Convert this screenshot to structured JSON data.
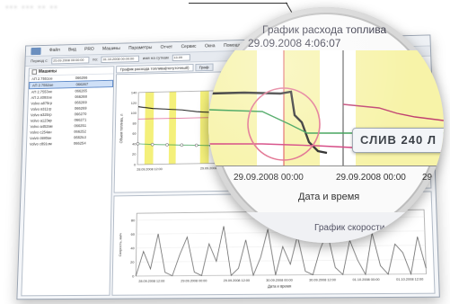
{
  "header": {
    "blurb": "··· ···  ·· ··"
  },
  "app": {
    "menu": [
      "Файл",
      "Вид",
      "PRO",
      "Машины",
      "Параметры",
      "Отчет",
      "Сервис",
      "Окна",
      "Помощь"
    ],
    "toolbar": {
      "period_label": "Период с:",
      "from_value": "25.09.2008 00:00:00",
      "to_label": "по:",
      "to_value": "31.10.2008 00:00:00",
      "extra_label": "имя на суткам",
      "extra_value": "13.09"
    },
    "objects_header": "Машины",
    "objects": [
      {
        "name": "АП 2.7551ое",
        "id": "066266"
      },
      {
        "name": "АП 2.7552ое",
        "id": "066267"
      },
      {
        "name": "АП 2.7553ое",
        "id": "066265"
      },
      {
        "name": "АП 2.4093ое",
        "id": "066268"
      },
      {
        "name": "Volvo а875гр",
        "id": "066269"
      },
      {
        "name": "Volvo в311гр",
        "id": "066269"
      },
      {
        "name": "Volvo в325гр",
        "id": "066270"
      },
      {
        "name": "Volvo а123кр",
        "id": "066271"
      },
      {
        "name": "Volvo а452ам",
        "id": "066251"
      },
      {
        "name": "Volvo с254ан",
        "id": "066252"
      },
      {
        "name": "Volvo с680ан",
        "id": "066253"
      },
      {
        "name": "Volvo с891ом",
        "id": "066254"
      }
    ],
    "selected_index": 1,
    "tabs": [
      "График расхода топлива(потуточный)",
      "Граф"
    ]
  },
  "chart_data": [
    {
      "type": "line",
      "title": "",
      "xlabel": "Дата и время",
      "ylabel": "Объем топлива, л",
      "x_ticks": [
        "28.09.2008 12:00",
        "29.09.2008 00:00",
        "29.09.2008 12:00",
        "30.09.2008 00:00",
        "30.09.2008 12:00"
      ],
      "y_ticks": [
        0,
        20,
        40,
        60,
        80,
        100,
        120,
        140
      ],
      "ylim": [
        0,
        140
      ],
      "series": [
        {
          "values": [
            112,
            108,
            106,
            104,
            100,
            98,
            96,
            94,
            92,
            90,
            88,
            86,
            84,
            60,
            45,
            40,
            35,
            30,
            28,
            40
          ]
        },
        {
          "values": [
            88,
            88,
            88,
            88,
            88,
            88,
            88,
            88,
            88,
            88,
            88,
            88,
            88,
            88,
            88,
            88,
            88,
            88,
            88,
            88
          ]
        },
        {
          "values": [
            40,
            38,
            37,
            36,
            35,
            34,
            33,
            32,
            31,
            30,
            30,
            29,
            28,
            28,
            27,
            26,
            26,
            25,
            25,
            25
          ]
        }
      ],
      "highlight_bands": 9
    },
    {
      "type": "line",
      "xlabel": "Дата и время",
      "ylabel": "Скорость, км/ч",
      "x_ticks": [
        "28.09.2008 12:00",
        "29.09.2008 00:00",
        "29.09.2008 12:00",
        "30.09.2008 00:00",
        "30.09.2008 12:00",
        "01.10.2008 00:00",
        "01.10.2008 12:00"
      ],
      "y_ticks": [
        0,
        20,
        40,
        60,
        80
      ],
      "ylim": [
        0,
        90
      ],
      "series": [
        {
          "values": [
            0,
            35,
            10,
            60,
            5,
            0,
            30,
            55,
            5,
            0,
            45,
            20,
            70,
            0,
            10,
            50,
            0,
            25,
            65,
            0,
            40,
            15,
            55,
            5,
            0,
            35,
            60,
            10,
            0,
            48,
            20,
            0,
            58,
            12,
            0,
            42,
            30,
            0,
            52,
            8
          ]
        }
      ]
    }
  ],
  "lens": {
    "title_line1": "График расхода топлива",
    "title_line2": "29.09.2008 4:06:07",
    "callout": "СЛИВ 240 Л",
    "x_tick1": "29.09.2008 00:00",
    "x_tick2": "29.09.2008 00:00",
    "x_tick3": "29.09.20",
    "xlabel": "Дата и время",
    "subtitle": "График скорости"
  }
}
